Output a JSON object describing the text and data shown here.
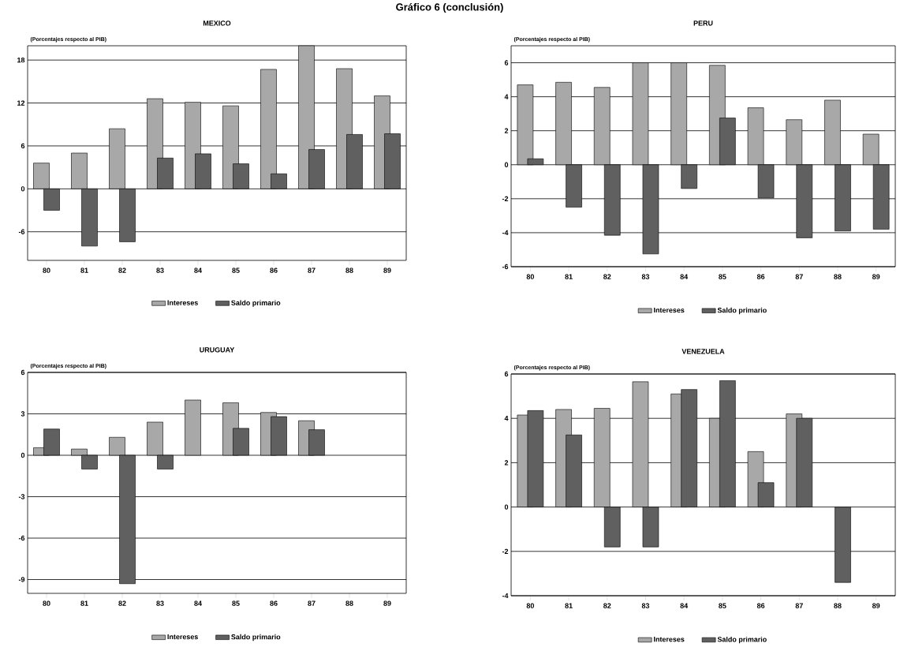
{
  "chart_data": [
    {
      "type": "bar",
      "title": "MEXICO",
      "ylabel": "(Porcentajes respecto al PIB)",
      "annotations": [
        "Gráfico 6 (conclusión)"
      ],
      "categories": [
        "80",
        "81",
        "82",
        "83",
        "84",
        "85",
        "86",
        "87",
        "88",
        "89"
      ],
      "series": [
        {
          "name": "Intereses",
          "color": "#a8a8a8",
          "values": [
            3.6,
            5.0,
            8.4,
            12.6,
            12.1,
            11.6,
            16.7,
            20,
            16.8,
            13.0
          ]
        },
        {
          "name": "Saldo primario",
          "color": "#606060",
          "values": [
            -3.0,
            -8.0,
            -7.4,
            4.3,
            4.9,
            3.5,
            2.1,
            5.5,
            7.6,
            7.7
          ]
        }
      ],
      "ylim": [
        -10,
        20
      ],
      "yticks": [
        -6,
        0,
        6,
        12,
        18
      ],
      "grid": "y",
      "legend": "bottom"
    },
    {
      "type": "bar",
      "title": "PERU",
      "ylabel": "(Porcentajes respecto al PIB)",
      "categories": [
        "80",
        "81",
        "82",
        "83",
        "84",
        "85",
        "86",
        "87",
        "88",
        "89"
      ],
      "series": [
        {
          "name": "Intereses",
          "color": "#a8a8a8",
          "values": [
            4.7,
            4.85,
            4.55,
            6.0,
            6.0,
            5.85,
            3.35,
            2.65,
            3.8,
            1.8
          ]
        },
        {
          "name": "Saldo primario",
          "color": "#606060",
          "values": [
            0.35,
            -2.5,
            -4.15,
            -5.25,
            -1.4,
            2.75,
            -1.95,
            -4.3,
            -3.9,
            -3.8
          ]
        }
      ],
      "ylim": [
        -6,
        7
      ],
      "yticks": [
        -6,
        -4,
        -2,
        0,
        2,
        4,
        6
      ],
      "grid": "y",
      "legend": "bottom"
    },
    {
      "type": "bar",
      "title": "URUGUAY",
      "ylabel": "(Porcentajes respecto al PIB)",
      "categories": [
        "80",
        "81",
        "82",
        "83",
        "84",
        "85",
        "86",
        "87",
        "88",
        "89"
      ],
      "series": [
        {
          "name": "Intereses",
          "color": "#a8a8a8",
          "values": [
            0.55,
            0.45,
            1.3,
            2.4,
            4.0,
            3.8,
            3.1,
            2.5,
            null,
            null
          ]
        },
        {
          "name": "Saldo primario",
          "color": "#606060",
          "values": [
            1.9,
            -1.0,
            -9.3,
            -1.0,
            null,
            1.95,
            2.8,
            1.85,
            null,
            null
          ]
        }
      ],
      "ylim": [
        -10,
        6
      ],
      "yticks": [
        -9,
        -6,
        -3,
        0,
        3,
        6
      ],
      "grid": "y",
      "legend": "bottom"
    },
    {
      "type": "bar",
      "title": "VENEZUELA",
      "ylabel": "(Porcentajes respecto al PIB)",
      "categories": [
        "80",
        "81",
        "82",
        "83",
        "84",
        "85",
        "86",
        "87",
        "88",
        "89"
      ],
      "series": [
        {
          "name": "Intereses",
          "color": "#a8a8a8",
          "values": [
            4.15,
            4.4,
            4.45,
            5.65,
            5.1,
            4.0,
            2.5,
            4.2,
            null,
            null
          ]
        },
        {
          "name": "Saldo primario",
          "color": "#606060",
          "values": [
            4.35,
            3.25,
            -1.8,
            -1.8,
            5.3,
            5.7,
            1.1,
            4.0,
            -3.4,
            null
          ]
        }
      ],
      "ylim": [
        -4,
        6
      ],
      "yticks": [
        -4,
        -2,
        0,
        2,
        4,
        6
      ],
      "grid": "y",
      "legend": "bottom"
    }
  ]
}
